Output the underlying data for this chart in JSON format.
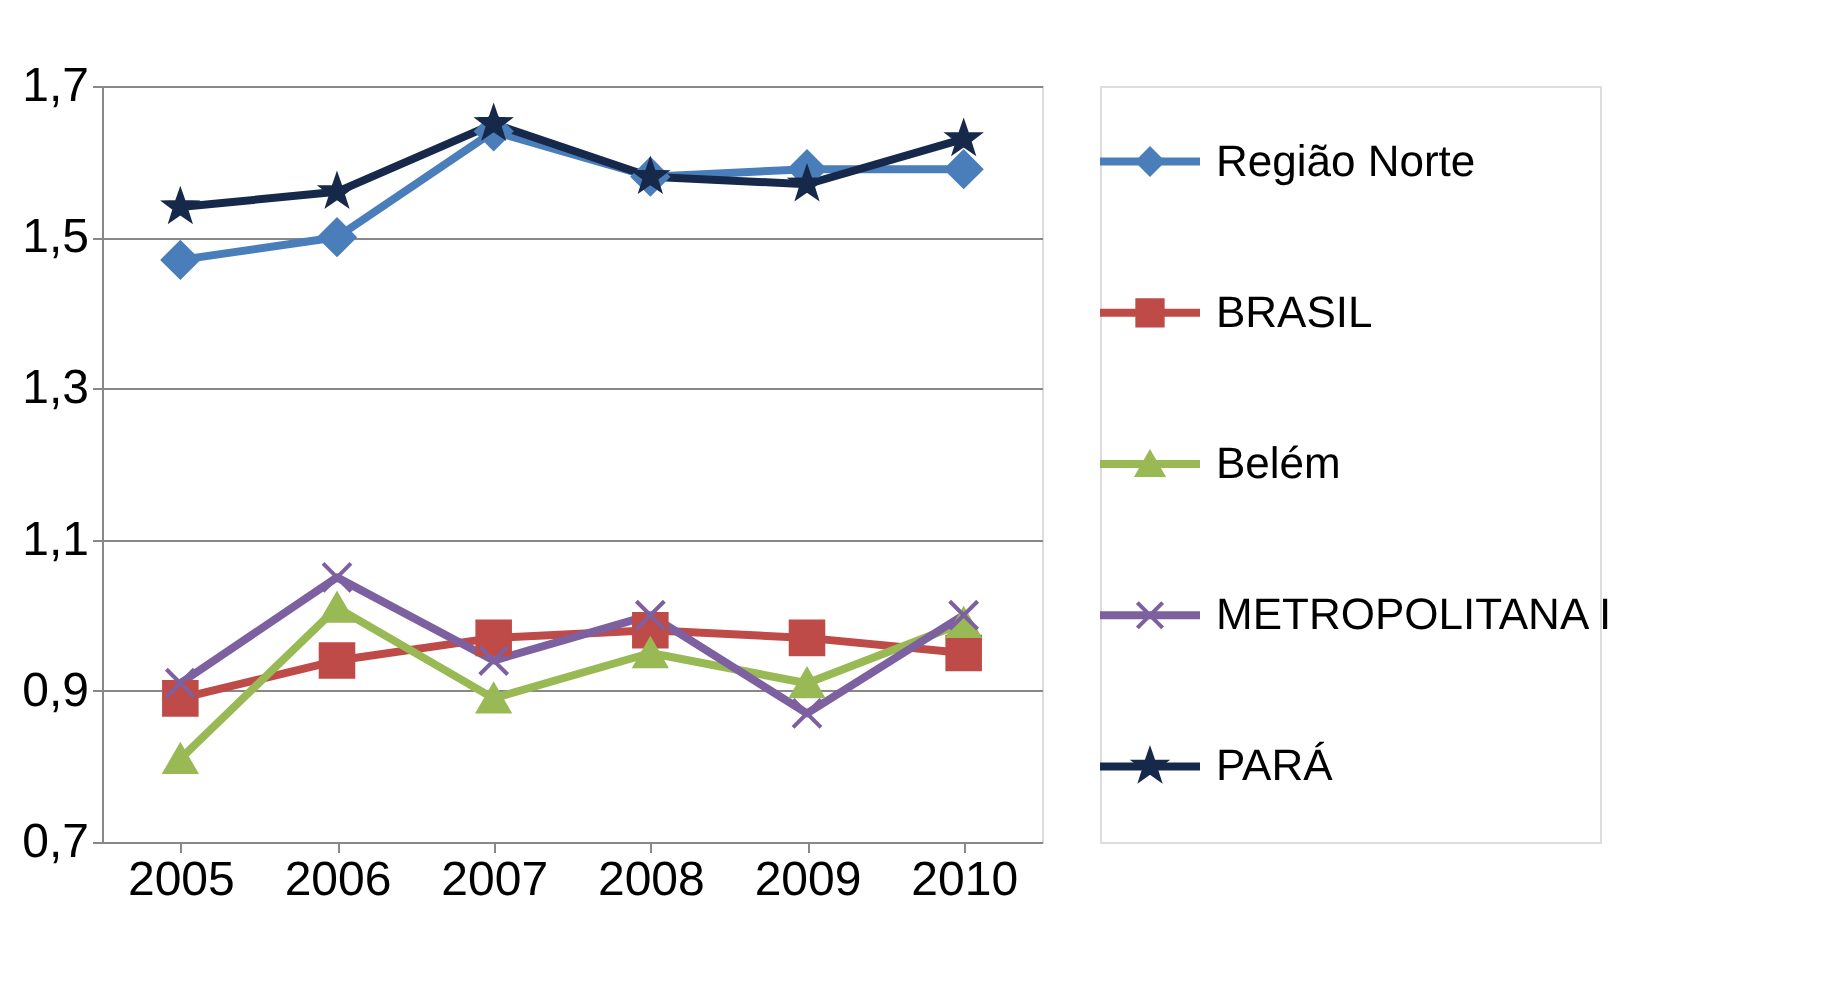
{
  "chart_data": {
    "type": "line",
    "categories": [
      "2005",
      "2006",
      "2007",
      "2008",
      "2009",
      "2010"
    ],
    "series": [
      {
        "name": "Região Norte",
        "color": "#4a7ebb",
        "marker": "diamond",
        "values": [
          1.47,
          1.5,
          1.64,
          1.58,
          1.59,
          1.59
        ]
      },
      {
        "name": "BRASIL",
        "color": "#be4b48",
        "marker": "square",
        "values": [
          0.89,
          0.94,
          0.97,
          0.98,
          0.97,
          0.95
        ]
      },
      {
        "name": "Belém",
        "color": "#98b954",
        "marker": "triangle",
        "values": [
          0.81,
          1.01,
          0.89,
          0.95,
          0.91,
          0.99
        ]
      },
      {
        "name": "METROPOLITANA I",
        "color": "#7d60a0",
        "marker": "cross",
        "values": [
          0.91,
          1.05,
          0.94,
          1.0,
          0.87,
          1.0
        ]
      },
      {
        "name": "PARÁ",
        "color": "#17294a",
        "marker": "star",
        "values": [
          1.54,
          1.56,
          1.65,
          1.58,
          1.57,
          1.63
        ]
      }
    ],
    "ylim": [
      0.7,
      1.7
    ],
    "yticks": [
      {
        "value": 0.7,
        "label": "0,7"
      },
      {
        "value": 0.9,
        "label": "0,9"
      },
      {
        "value": 1.1,
        "label": "1,1"
      },
      {
        "value": 1.3,
        "label": "1,3"
      },
      {
        "value": 1.5,
        "label": "1,5"
      },
      {
        "value": 1.7,
        "label": "1,7"
      }
    ],
    "grid": "y",
    "legend": "right"
  }
}
